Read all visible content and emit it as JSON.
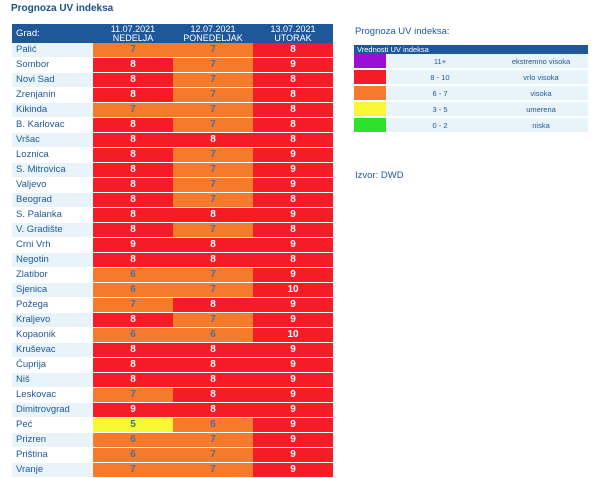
{
  "page_title": "Prognoza UV indeksa",
  "table": {
    "city_header": "Grad:",
    "days": [
      {
        "date": "11.07.2021",
        "name": "NEDELJA"
      },
      {
        "date": "12.07.2021",
        "name": "PONEDELJAK"
      },
      {
        "date": "13.07.2021",
        "name": "UTORAK"
      }
    ],
    "rows": [
      {
        "city": "Palić",
        "values": [
          "7",
          "7",
          "8"
        ]
      },
      {
        "city": "Sombor",
        "values": [
          "8",
          "7",
          "9"
        ]
      },
      {
        "city": "Novi Sad",
        "values": [
          "8",
          "7",
          "8"
        ]
      },
      {
        "city": "Zrenjanin",
        "values": [
          "8",
          "7",
          "8"
        ]
      },
      {
        "city": "Kikinda",
        "values": [
          "7",
          "7",
          "8"
        ]
      },
      {
        "city": "B. Karlovac",
        "values": [
          "8",
          "7",
          "8"
        ]
      },
      {
        "city": "Vršac",
        "values": [
          "8",
          "8",
          "8"
        ]
      },
      {
        "city": "Loznica",
        "values": [
          "8",
          "7",
          "9"
        ]
      },
      {
        "city": "S. Mitrovica",
        "values": [
          "8",
          "7",
          "9"
        ]
      },
      {
        "city": "Valjevo",
        "values": [
          "8",
          "7",
          "9"
        ]
      },
      {
        "city": "Beograd",
        "values": [
          "8",
          "7",
          "8"
        ]
      },
      {
        "city": "S. Palanka",
        "values": [
          "8",
          "8",
          "9"
        ]
      },
      {
        "city": "V. Gradište",
        "values": [
          "8",
          "7",
          "8"
        ]
      },
      {
        "city": "Crni Vrh",
        "values": [
          "9",
          "8",
          "9"
        ]
      },
      {
        "city": "Negotin",
        "values": [
          "8",
          "8",
          "8"
        ]
      },
      {
        "city": "Zlatibor",
        "values": [
          "6",
          "7",
          "9"
        ]
      },
      {
        "city": "Sjenica",
        "values": [
          "6",
          "7",
          "10"
        ]
      },
      {
        "city": "Požega",
        "values": [
          "7",
          "8",
          "9"
        ]
      },
      {
        "city": "Kraljevo",
        "values": [
          "8",
          "7",
          "9"
        ]
      },
      {
        "city": "Kopaonik",
        "values": [
          "6",
          "6",
          "10"
        ]
      },
      {
        "city": "Kruševac",
        "values": [
          "8",
          "8",
          "9"
        ]
      },
      {
        "city": "Ćuprija",
        "values": [
          "8",
          "8",
          "9"
        ]
      },
      {
        "city": "Niš",
        "values": [
          "8",
          "8",
          "9"
        ]
      },
      {
        "city": "Leskovac",
        "values": [
          "7",
          "8",
          "9"
        ]
      },
      {
        "city": "Dimitrovgrad",
        "values": [
          "9",
          "8",
          "9"
        ]
      },
      {
        "city": "Peć",
        "values": [
          "5",
          "6",
          "9"
        ]
      },
      {
        "city": "Prizren",
        "values": [
          "6",
          "7",
          "9"
        ]
      },
      {
        "city": "Priština",
        "values": [
          "6",
          "7",
          "9"
        ]
      },
      {
        "city": "Vranje",
        "values": [
          "7",
          "7",
          "9"
        ]
      }
    ]
  },
  "legend": {
    "title": "Prognoza UV indeksa:",
    "header": "Vrednosti UV indeksa",
    "rows": [
      {
        "color": "#9a0fd6",
        "range": "11+",
        "label": "ekstremno visoka"
      },
      {
        "color": "#f51c28",
        "range": "8 - 10",
        "label": "vrlo visoka"
      },
      {
        "color": "#f57a2c",
        "range": "6 - 7",
        "label": "visoka"
      },
      {
        "color": "#f7f736",
        "range": "3 - 5",
        "label": "umerena"
      },
      {
        "color": "#2ce22c",
        "range": "0 - 2",
        "label": "niska"
      }
    ]
  },
  "source": "Izvor: DWD"
}
